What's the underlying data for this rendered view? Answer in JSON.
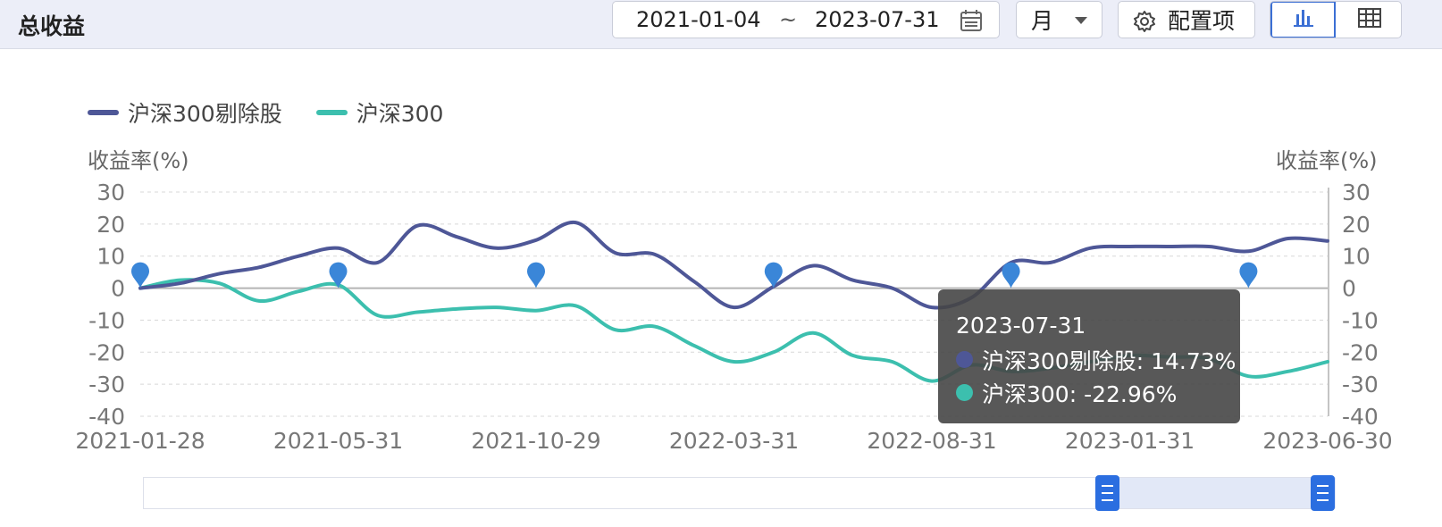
{
  "header": {
    "title": "总收益",
    "date_start": "2021-01-04",
    "date_sep": "~",
    "date_end": "2023-07-31",
    "period": "月",
    "config_label": "配置项"
  },
  "icons": {
    "calendar": "calendar-icon",
    "dropdown": "chevron-down-icon",
    "config": "gear-icon",
    "bar_view": "bar-chart-icon",
    "table_view": "table-icon"
  },
  "colors": {
    "series1": "#4e5797",
    "series2": "#3cbfae",
    "marker": "#3a86d8",
    "accent": "#2b6ee0"
  },
  "tooltip": {
    "date": "2023-07-31",
    "rows": [
      {
        "label": "沪深300剔除股: 14.73%"
      },
      {
        "label": "沪深300: -22.96%"
      }
    ]
  },
  "chart_data": {
    "type": "line",
    "ylabel_left": "收益率(%)",
    "ylabel_right": "收益率(%)",
    "ylim": [
      -40,
      30
    ],
    "yticks": [
      30,
      20,
      10,
      0,
      -10,
      -20,
      -30,
      -40
    ],
    "x_tick_labels": [
      "2021-01-28",
      "2021-05-31",
      "2021-10-29",
      "2022-03-31",
      "2022-08-31",
      "2023-01-31",
      "2023-06-30"
    ],
    "x": [
      "2021-01",
      "2021-02",
      "2021-03",
      "2021-04",
      "2021-05",
      "2021-06",
      "2021-07",
      "2021-08",
      "2021-09",
      "2021-10",
      "2021-11",
      "2021-12",
      "2022-01",
      "2022-02",
      "2022-03",
      "2022-04",
      "2022-05",
      "2022-06",
      "2022-07",
      "2022-08",
      "2022-09",
      "2022-10",
      "2022-11",
      "2022-12",
      "2023-01",
      "2023-02",
      "2023-03",
      "2023-04",
      "2023-05",
      "2023-06",
      "2023-07"
    ],
    "series": [
      {
        "name": "沪深300剔除股",
        "values": [
          0.0,
          1.5,
          4.5,
          6.5,
          10.0,
          12.5,
          8.0,
          19.5,
          16.0,
          12.5,
          15.0,
          20.5,
          11.0,
          10.5,
          2.0,
          -6.0,
          0.5,
          7.0,
          2.5,
          0.0,
          -6.0,
          -3.0,
          8.0,
          8.0,
          12.5,
          13.0,
          13.0,
          13.0,
          11.5,
          15.5,
          14.73
        ]
      },
      {
        "name": "沪深300",
        "values": [
          0.0,
          2.5,
          1.5,
          -4.0,
          -1.0,
          1.0,
          -8.5,
          -7.5,
          -6.5,
          -6.0,
          -7.0,
          -5.5,
          -13.0,
          -12.0,
          -18.0,
          -23.0,
          -20.0,
          -14.0,
          -21.0,
          -23.0,
          -29.0,
          -24.0,
          -26.0,
          -25.0,
          -23.0,
          -21.0,
          -21.5,
          -22.0,
          -27.5,
          -26.0,
          -22.96
        ]
      }
    ],
    "markers": [
      "2021-01",
      "2021-06",
      "2021-11",
      "2022-05",
      "2022-11",
      "2023-05"
    ],
    "legend": "top-left",
    "grid": true
  }
}
